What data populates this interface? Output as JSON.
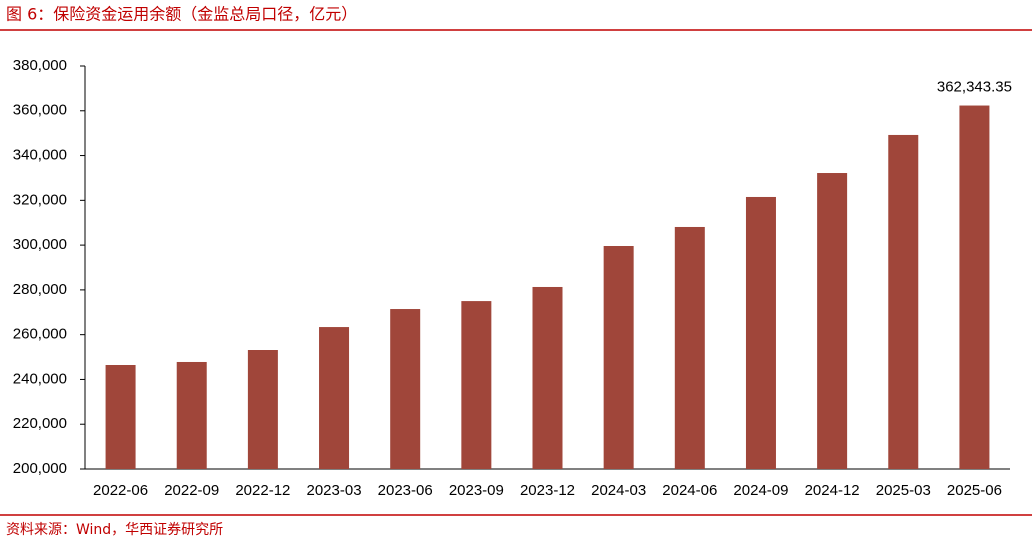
{
  "title": "图 6：保险资金运用余额（金监总局口径，亿元）",
  "source": "资料来源：Wind，华西证券研究所",
  "chart_data": {
    "type": "bar",
    "categories": [
      "2022-06",
      "2022-09",
      "2022-12",
      "2023-03",
      "2023-06",
      "2023-09",
      "2023-12",
      "2024-03",
      "2024-06",
      "2024-09",
      "2024-12",
      "2025-03",
      "2025-06"
    ],
    "values": [
      246450,
      247800,
      253150,
      263400,
      271450,
      275000,
      281300,
      299600,
      308100,
      321500,
      332200,
      349200,
      362343.35
    ],
    "value_labels": [
      null,
      null,
      null,
      null,
      null,
      null,
      null,
      null,
      null,
      null,
      null,
      null,
      "362,343.35"
    ],
    "color": "#a0463a",
    "ylim": [
      200000,
      380000
    ],
    "yticks": [
      {
        "value": 200000,
        "label": "200,000"
      },
      {
        "value": 220000,
        "label": "220,000"
      },
      {
        "value": 240000,
        "label": "240,000"
      },
      {
        "value": 260000,
        "label": "260,000"
      },
      {
        "value": 280000,
        "label": "280,000"
      },
      {
        "value": 300000,
        "label": "300,000"
      },
      {
        "value": 320000,
        "label": "320,000"
      },
      {
        "value": 340000,
        "label": "340,000"
      },
      {
        "value": 360000,
        "label": "360,000"
      },
      {
        "value": 380000,
        "label": "380,000"
      }
    ],
    "grid": false
  }
}
